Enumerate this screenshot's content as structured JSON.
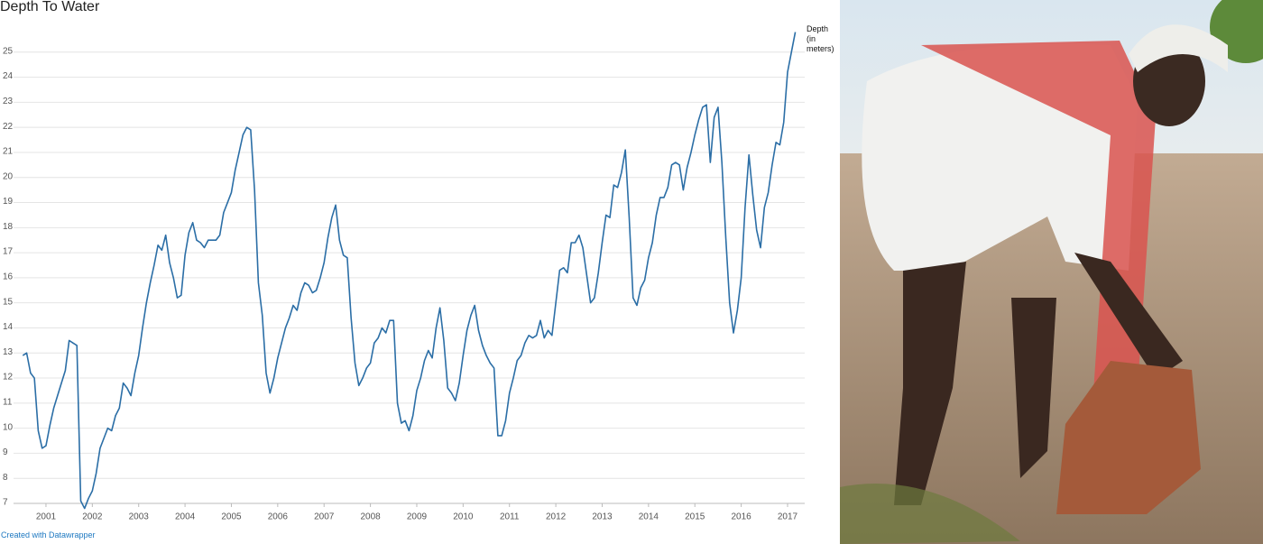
{
  "chart_data": {
    "type": "line",
    "title": "Depth To Water",
    "credit": "Created with Datawrapper",
    "xlim": [
      2000.3,
      2017.37
    ],
    "xticks": [
      2001,
      2002,
      2003,
      2004,
      2005,
      2006,
      2007,
      2008,
      2009,
      2010,
      2011,
      2012,
      2013,
      2014,
      2015,
      2016,
      2017
    ],
    "ylim": [
      7,
      26
    ],
    "yticks": [
      7,
      8,
      9,
      10,
      11,
      12,
      13,
      14,
      15,
      16,
      17,
      18,
      19,
      20,
      21,
      22,
      23,
      24,
      25
    ],
    "grid": true,
    "x": [
      2000.5,
      2000.583,
      2000.667,
      2000.75,
      2000.833,
      2000.917,
      2001,
      2001.083,
      2001.167,
      2001.25,
      2001.333,
      2001.417,
      2001.5,
      2001.583,
      2001.667,
      2001.75,
      2001.833,
      2001.917,
      2002,
      2002.083,
      2002.167,
      2002.25,
      2002.333,
      2002.417,
      2002.5,
      2002.583,
      2002.667,
      2002.75,
      2002.833,
      2002.917,
      2003,
      2003.083,
      2003.167,
      2003.25,
      2003.333,
      2003.417,
      2003.5,
      2003.583,
      2003.667,
      2003.75,
      2003.833,
      2003.917,
      2004,
      2004.083,
      2004.167,
      2004.25,
      2004.333,
      2004.417,
      2004.5,
      2004.583,
      2004.667,
      2004.75,
      2004.833,
      2004.917,
      2005,
      2005.083,
      2005.167,
      2005.25,
      2005.333,
      2005.417,
      2005.5,
      2005.583,
      2005.667,
      2005.75,
      2005.833,
      2005.917,
      2006,
      2006.083,
      2006.167,
      2006.25,
      2006.333,
      2006.417,
      2006.5,
      2006.583,
      2006.667,
      2006.75,
      2006.833,
      2006.917,
      2007,
      2007.083,
      2007.167,
      2007.25,
      2007.333,
      2007.417,
      2007.5,
      2007.583,
      2007.667,
      2007.75,
      2007.833,
      2007.917,
      2008,
      2008.083,
      2008.167,
      2008.25,
      2008.333,
      2008.417,
      2008.5,
      2008.583,
      2008.667,
      2008.75,
      2008.833,
      2008.917,
      2009,
      2009.083,
      2009.167,
      2009.25,
      2009.333,
      2009.417,
      2009.5,
      2009.583,
      2009.667,
      2009.75,
      2009.833,
      2009.917,
      2010,
      2010.083,
      2010.167,
      2010.25,
      2010.333,
      2010.417,
      2010.5,
      2010.583,
      2010.667,
      2010.75,
      2010.833,
      2010.917,
      2011,
      2011.083,
      2011.167,
      2011.25,
      2011.333,
      2011.417,
      2011.5,
      2011.583,
      2011.667,
      2011.75,
      2011.833,
      2011.917,
      2012,
      2012.083,
      2012.167,
      2012.25,
      2012.333,
      2012.417,
      2012.5,
      2012.583,
      2012.667,
      2012.75,
      2012.833,
      2012.917,
      2013,
      2013.083,
      2013.167,
      2013.25,
      2013.333,
      2013.417,
      2013.5,
      2013.583,
      2013.667,
      2013.75,
      2013.833,
      2013.917,
      2014,
      2014.083,
      2014.167,
      2014.25,
      2014.333,
      2014.417,
      2014.5,
      2014.583,
      2014.667,
      2014.75,
      2014.833,
      2014.917,
      2015,
      2015.083,
      2015.167,
      2015.25,
      2015.333,
      2015.417,
      2015.5,
      2015.583,
      2015.667,
      2015.75,
      2015.833,
      2015.917,
      2016,
      2016.083,
      2016.167,
      2016.25,
      2016.333,
      2016.417,
      2016.5,
      2016.583,
      2016.667,
      2016.75,
      2016.833,
      2016.917,
      2017,
      2017.083,
      2017.167
    ],
    "series": [
      {
        "name": "Depth (in meters)",
        "color": "#2b6ea6",
        "values": [
          12.9,
          13.0,
          12.2,
          12.0,
          9.9,
          9.2,
          9.3,
          10.1,
          10.8,
          11.3,
          11.8,
          12.3,
          13.5,
          13.4,
          13.3,
          7.1,
          6.8,
          7.2,
          7.5,
          8.2,
          9.2,
          9.6,
          10.0,
          9.9,
          10.5,
          10.8,
          11.8,
          11.6,
          11.3,
          12.2,
          12.9,
          14.0,
          15.0,
          15.8,
          16.5,
          17.3,
          17.1,
          17.7,
          16.6,
          16.0,
          15.2,
          15.3,
          16.9,
          17.8,
          18.2,
          17.5,
          17.4,
          17.2,
          17.5,
          17.5,
          17.5,
          17.7,
          18.6,
          19.0,
          19.4,
          20.3,
          21.0,
          21.7,
          22.0,
          21.9,
          19.5,
          15.8,
          14.5,
          12.2,
          11.4,
          12.0,
          12.8,
          13.4,
          14.0,
          14.4,
          14.9,
          14.7,
          15.4,
          15.8,
          15.7,
          15.4,
          15.5,
          16.0,
          16.6,
          17.6,
          18.4,
          18.9,
          17.5,
          16.9,
          16.8,
          14.4,
          12.6,
          11.7,
          12.0,
          12.4,
          12.6,
          13.4,
          13.6,
          14.0,
          13.8,
          14.3,
          14.3,
          11.0,
          10.2,
          10.3,
          9.9,
          10.5,
          11.5,
          12.0,
          12.7,
          13.1,
          12.8,
          14.0,
          14.8,
          13.5,
          11.6,
          11.4,
          11.1,
          11.8,
          12.9,
          13.9,
          14.5,
          14.9,
          13.9,
          13.3,
          12.9,
          12.6,
          12.4,
          9.7,
          9.7,
          10.3,
          11.4,
          12.0,
          12.7,
          12.9,
          13.4,
          13.7,
          13.6,
          13.7,
          14.3,
          13.6,
          13.9,
          13.7,
          15.0,
          16.3,
          16.4,
          16.2,
          17.4,
          17.4,
          17.7,
          17.2,
          16.1,
          15.0,
          15.2,
          16.2,
          17.4,
          18.5,
          18.4,
          19.7,
          19.6,
          20.2,
          21.1,
          18.4,
          15.2,
          14.9,
          15.6,
          15.9,
          16.8,
          17.4,
          18.5,
          19.2,
          19.2,
          19.6,
          20.5,
          20.6,
          20.5,
          19.5,
          20.4,
          21.0,
          21.7,
          22.3,
          22.8,
          22.9,
          20.6,
          22.4,
          22.8,
          20.6,
          17.6,
          15.0,
          13.8,
          14.7,
          16.0,
          18.8,
          20.9,
          19.3,
          17.9,
          17.2,
          18.8,
          19.4,
          20.5,
          21.4,
          21.3,
          22.2,
          24.2,
          25.0,
          25.8
        ]
      }
    ]
  }
}
